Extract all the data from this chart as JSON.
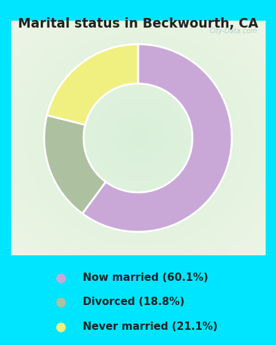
{
  "title": "Marital status in Beckwourth, CA",
  "title_color": "#222222",
  "title_fontsize": 13.5,
  "bg_color": "#00e5ff",
  "chart_bg": "#d8eed8",
  "slices": [
    60.1,
    18.8,
    21.1
  ],
  "labels": [
    "Now married (60.1%)",
    "Divorced (18.8%)",
    "Never married (21.1%)"
  ],
  "colors": [
    "#c9a8d8",
    "#adc0a0",
    "#f0f080"
  ],
  "startangle": 90,
  "donut_width": 0.42,
  "watermark": "City-Data.com",
  "watermark_color": "#aacccc",
  "legend_fontsize": 11,
  "legend_marker_size": 10
}
